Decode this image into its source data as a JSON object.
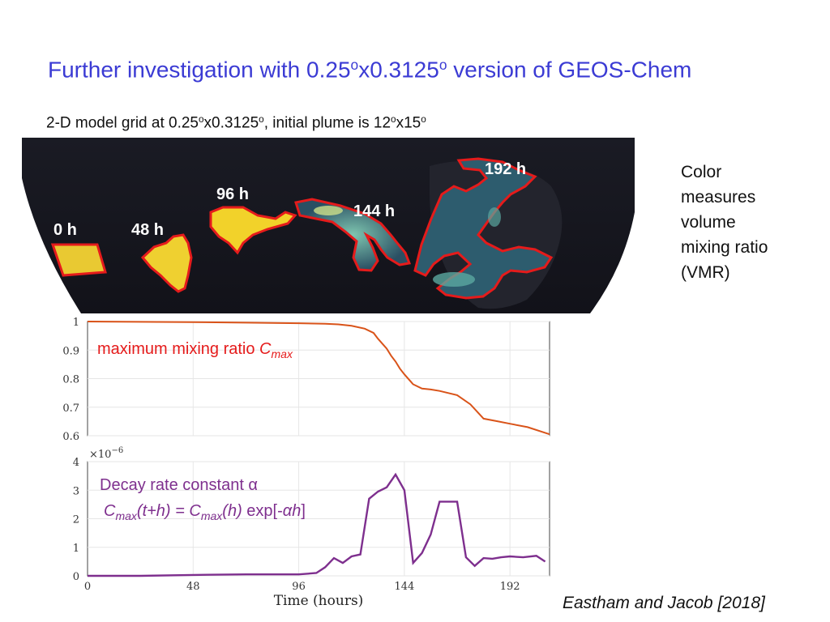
{
  "title": {
    "part1": "Further investigation with 0.25",
    "sup1": "o",
    "part2": "x0.3125",
    "sup2": "o",
    "part3": " version of GEOS-Chem"
  },
  "subtitle": {
    "part1": "2-D model grid at 0.25",
    "sup1": "o",
    "part2": "x0.3125",
    "sup2": "o",
    "part3": ", initial plume is 12",
    "sup3": "o",
    "part4": "x15",
    "sup4": "o"
  },
  "map": {
    "labels": [
      "0 h",
      "48 h",
      "96 h",
      "144 h",
      "192 h"
    ],
    "background_color": "#16161e",
    "plume_color": "#f2cf2a",
    "outline_color": "#e51b1b"
  },
  "side_note": [
    "Color",
    "measures",
    "volume",
    "mixing ratio",
    "(VMR)"
  ],
  "citation": "Eastham and Jacob [2018]",
  "chart_data": [
    {
      "type": "line",
      "annotation": {
        "text": "maximum mixing ratio ",
        "symbol": "C",
        "subscript": "max"
      },
      "xlim": [
        0,
        210
      ],
      "ylim": [
        0.6,
        1
      ],
      "y_ticks": [
        "1",
        "0.9",
        "0.8",
        "0.7",
        "0.6"
      ],
      "grid": true,
      "color": "#d95319",
      "x": [
        0,
        24,
        48,
        72,
        96,
        108,
        114,
        120,
        126,
        130,
        132,
        136,
        138,
        140,
        142,
        144,
        148,
        152,
        156,
        160,
        168,
        174,
        180,
        186,
        192,
        200,
        210
      ],
      "y": [
        1.0,
        0.999,
        0.998,
        0.996,
        0.994,
        0.992,
        0.99,
        0.985,
        0.975,
        0.96,
        0.94,
        0.905,
        0.88,
        0.86,
        0.835,
        0.815,
        0.78,
        0.765,
        0.762,
        0.757,
        0.742,
        0.71,
        0.66,
        0.651,
        0.642,
        0.63,
        0.605
      ]
    },
    {
      "type": "line",
      "annotation_lines": [
        "Decay rate constant α",
        {
          "c": "C",
          "sub": "max",
          "mid": "(t+h) = ",
          "c2": "C",
          "sub2": "max",
          "mid2": "(h)",
          "tail1": " exp[-",
          "alpha": "αh",
          "tail2": "]"
        }
      ],
      "scale_label": "×10",
      "scale_exponent": "−6",
      "xlabel": "Time (hours)",
      "x_ticks": [
        "0",
        "48",
        "96",
        "144",
        "192"
      ],
      "y_ticks": [
        "4",
        "3",
        "2",
        "1",
        "0"
      ],
      "xlim": [
        0,
        210
      ],
      "ylim": [
        0,
        4
      ],
      "grid": true,
      "color": "#7e2f8e",
      "x": [
        0,
        24,
        48,
        72,
        96,
        104,
        108,
        112,
        116,
        120,
        124,
        128,
        132,
        136,
        140,
        144,
        148,
        152,
        156,
        160,
        164,
        168,
        172,
        176,
        180,
        184,
        188,
        192,
        198,
        204,
        208
      ],
      "y": [
        0.0,
        0.0,
        0.03,
        0.05,
        0.05,
        0.1,
        0.3,
        0.62,
        0.45,
        0.68,
        0.75,
        2.7,
        2.95,
        3.1,
        3.55,
        3.0,
        0.45,
        0.8,
        1.45,
        2.6,
        2.6,
        2.6,
        0.65,
        0.35,
        0.62,
        0.6,
        0.65,
        0.68,
        0.65,
        0.7,
        0.5
      ]
    }
  ]
}
